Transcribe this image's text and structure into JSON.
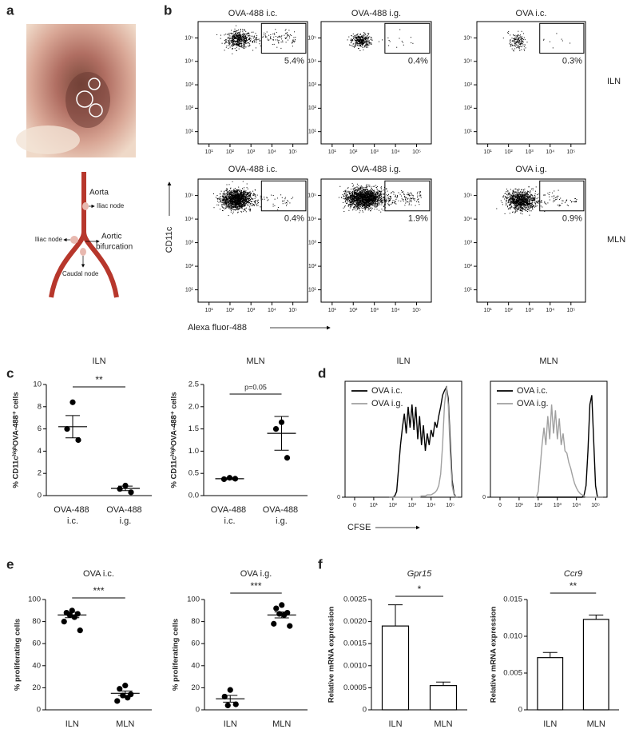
{
  "panel_labels": [
    "a",
    "b",
    "c",
    "d",
    "e",
    "f"
  ],
  "diagram": {
    "aorta": "Aorta",
    "iliac_node_right": "Iliac node",
    "iliac_node_left": "Iliac node",
    "aortic_bifurcation": [
      "Aortic",
      "bifurcation"
    ],
    "caudal_node": "Caudal node"
  },
  "flow": {
    "row_labels": [
      "ILN",
      "MLN"
    ],
    "y_axis_label": "CD11c",
    "x_axis_label": "Alexa fluor-488"
  },
  "chart_data": [
    {
      "type": "flow",
      "title": "OVA-488 i.c.",
      "values": [
        5.4
      ],
      "value_labels": [
        "5.4%"
      ],
      "log": true,
      "xlim": [
        3,
        500000
      ],
      "ylim": [
        3,
        500000
      ],
      "xticks": [
        {
          "value": 10,
          "label": "10¹"
        },
        {
          "value": 100,
          "label": "10²"
        },
        {
          "value": 1000,
          "label": "10³"
        },
        {
          "value": 10000,
          "label": "10⁴"
        },
        {
          "value": 100000,
          "label": "10⁵"
        }
      ],
      "yticks": [
        {
          "value": 10,
          "label": "10¹"
        },
        {
          "value": 100,
          "label": "10²"
        },
        {
          "value": 1000,
          "label": "10³"
        },
        {
          "value": 10000,
          "label": "10⁴"
        },
        {
          "value": 100000,
          "label": "10⁵"
        }
      ]
    },
    {
      "type": "flow",
      "title": "OVA-488 i.g.",
      "values": [
        0.4
      ],
      "value_labels": [
        "0.4%"
      ],
      "log": true,
      "xlim": [
        3,
        500000
      ],
      "ylim": [
        3,
        500000
      ],
      "xticks": [
        {
          "value": 10,
          "label": "10¹"
        },
        {
          "value": 100,
          "label": "10²"
        },
        {
          "value": 1000,
          "label": "10³"
        },
        {
          "value": 10000,
          "label": "10⁴"
        },
        {
          "value": 100000,
          "label": "10⁵"
        }
      ],
      "yticks": [
        {
          "value": 10,
          "label": "10¹"
        },
        {
          "value": 100,
          "label": "10²"
        },
        {
          "value": 1000,
          "label": "10³"
        },
        {
          "value": 10000,
          "label": "10⁴"
        },
        {
          "value": 100000,
          "label": "10⁵"
        }
      ]
    },
    {
      "type": "flow",
      "title": "OVA i.c.",
      "values": [
        0.3
      ],
      "value_labels": [
        "0.3%"
      ],
      "log": true,
      "xlim": [
        3,
        500000
      ],
      "ylim": [
        3,
        500000
      ],
      "xticks": [
        {
          "value": 10,
          "label": "10¹"
        },
        {
          "value": 100,
          "label": "10²"
        },
        {
          "value": 1000,
          "label": "10³"
        },
        {
          "value": 10000,
          "label": "10⁴"
        },
        {
          "value": 100000,
          "label": "10⁵"
        }
      ],
      "yticks": [
        {
          "value": 10,
          "label": "10¹"
        },
        {
          "value": 100,
          "label": "10²"
        },
        {
          "value": 1000,
          "label": "10³"
        },
        {
          "value": 10000,
          "label": "10⁴"
        },
        {
          "value": 100000,
          "label": "10⁵"
        }
      ]
    },
    {
      "type": "flow",
      "title": "OVA-488 i.c.",
      "values": [
        0.4
      ],
      "value_labels": [
        "0.4%"
      ],
      "log": true,
      "xlim": [
        3,
        500000
      ],
      "ylim": [
        3,
        500000
      ],
      "xticks": [
        {
          "value": 10,
          "label": "10¹"
        },
        {
          "value": 100,
          "label": "10²"
        },
        {
          "value": 1000,
          "label": "10³"
        },
        {
          "value": 10000,
          "label": "10⁴"
        },
        {
          "value": 100000,
          "label": "10⁵"
        }
      ],
      "yticks": [
        {
          "value": 10,
          "label": "10¹"
        },
        {
          "value": 100,
          "label": "10²"
        },
        {
          "value": 1000,
          "label": "10³"
        },
        {
          "value": 10000,
          "label": "10⁴"
        },
        {
          "value": 100000,
          "label": "10⁵"
        }
      ]
    },
    {
      "type": "flow",
      "title": "OVA-488 i.g.",
      "values": [
        1.9
      ],
      "value_labels": [
        "1.9%"
      ],
      "log": true,
      "xlim": [
        3,
        500000
      ],
      "ylim": [
        3,
        500000
      ],
      "xticks": [
        {
          "value": 10,
          "label": "10¹"
        },
        {
          "value": 100,
          "label": "10²"
        },
        {
          "value": 1000,
          "label": "10³"
        },
        {
          "value": 10000,
          "label": "10⁴"
        },
        {
          "value": 100000,
          "label": "10⁵"
        }
      ],
      "yticks": [
        {
          "value": 10,
          "label": "10¹"
        },
        {
          "value": 100,
          "label": "10²"
        },
        {
          "value": 1000,
          "label": "10³"
        },
        {
          "value": 10000,
          "label": "10⁴"
        },
        {
          "value": 100000,
          "label": "10⁵"
        }
      ]
    },
    {
      "type": "flow",
      "title": "OVA i.g.",
      "values": [
        0.9
      ],
      "value_labels": [
        "0.9%"
      ],
      "log": true,
      "xlim": [
        3,
        500000
      ],
      "ylim": [
        3,
        500000
      ],
      "xticks": [
        {
          "value": 10,
          "label": "10¹"
        },
        {
          "value": 100,
          "label": "10²"
        },
        {
          "value": 1000,
          "label": "10³"
        },
        {
          "value": 10000,
          "label": "10⁴"
        },
        {
          "value": 100000,
          "label": "10⁵"
        }
      ],
      "yticks": [
        {
          "value": 10,
          "label": "10¹"
        },
        {
          "value": 100,
          "label": "10²"
        },
        {
          "value": 1000,
          "label": "10³"
        },
        {
          "value": 10000,
          "label": "10⁴"
        },
        {
          "value": 100000,
          "label": "10⁵"
        }
      ]
    },
    {
      "type": "dotplot",
      "title": "ILN",
      "ylabel": "% CD11cʰⁱᵍʰOVA-488⁺ cells",
      "categories": [
        "OVA-488 i.c.",
        "OVA-488 i.g."
      ],
      "groups": [
        {
          "points": [
            8.4,
            6.0,
            5.0
          ],
          "mean": 6.2,
          "sem": 1.0
        },
        {
          "points": [
            0.9,
            0.6,
            0.3
          ],
          "mean": 0.65,
          "sem": 0.2
        }
      ],
      "annotation": "**",
      "ylim": [
        0,
        10
      ],
      "yticks": [
        0,
        2,
        4,
        6,
        8,
        10
      ]
    },
    {
      "type": "dotplot",
      "title": "MLN",
      "ylabel": "% CD11cʰⁱᵍʰOVA-488⁺ cells",
      "categories": [
        "OVA-488 i.c.",
        "OVA-488 i.g."
      ],
      "groups": [
        {
          "points": [
            0.4,
            0.37,
            0.38
          ],
          "mean": 0.38,
          "sem": 0.02
        },
        {
          "points": [
            1.65,
            1.5,
            0.85
          ],
          "mean": 1.4,
          "sem": 0.38
        }
      ],
      "annotation": "p=0.05",
      "ylim": [
        0,
        2.5
      ],
      "yticks": [
        {
          "value": 0,
          "label": "0.0"
        },
        {
          "value": 0.5,
          "label": "0.5"
        },
        {
          "value": 1,
          "label": "1.0"
        },
        {
          "value": 1.5,
          "label": "1.5"
        },
        {
          "value": 2,
          "label": "2.0"
        },
        {
          "value": 2.5,
          "label": "2.5"
        }
      ]
    },
    {
      "type": "hist",
      "title": "ILN",
      "xlabel": "CFSE",
      "xlim": [
        -0.5,
        5.6
      ],
      "ylim": [
        0,
        100
      ],
      "xticks": [
        0,
        {
          "value": 1,
          "label": "10¹"
        },
        {
          "value": 2,
          "label": "10²"
        },
        {
          "value": 3,
          "label": "10³"
        },
        {
          "value": 4,
          "label": "10⁴"
        },
        {
          "value": 5,
          "label": "10⁵"
        }
      ],
      "yticks": [
        0
      ],
      "x": [
        1.8,
        1.9,
        2.0,
        2.1,
        2.2,
        2.3,
        2.4,
        2.5,
        2.6,
        2.7,
        2.8,
        2.9,
        3.0,
        3.1,
        3.2,
        3.3,
        3.4,
        3.5,
        3.6,
        3.7,
        3.8,
        3.9,
        4.0,
        4.1,
        4.2,
        4.3,
        4.4,
        4.5,
        4.6,
        4.7,
        4.8,
        4.9,
        5.0,
        5.1,
        5.2,
        5.3,
        5.4
      ],
      "series": [
        {
          "name": "OVA i.c.",
          "color": "#000000",
          "values": [
            0,
            0,
            0,
            1,
            5,
            25,
            45,
            60,
            72,
            55,
            78,
            60,
            80,
            58,
            78,
            50,
            70,
            45,
            62,
            40,
            55,
            45,
            58,
            52,
            65,
            60,
            70,
            78,
            88,
            92,
            95,
            85,
            50,
            15,
            3,
            0,
            0
          ]
        },
        {
          "name": "OVA i.g.",
          "color": "#a0a0a0",
          "values": [
            0,
            0,
            0,
            0,
            0,
            0,
            0,
            0,
            0,
            0,
            0,
            0,
            0,
            0,
            0,
            0,
            0,
            1,
            1,
            1,
            2,
            2,
            2,
            3,
            4,
            6,
            10,
            20,
            45,
            80,
            95,
            80,
            40,
            10,
            2,
            0,
            0
          ]
        }
      ]
    },
    {
      "type": "hist",
      "title": "MLN",
      "xlim": [
        -0.5,
        5.6
      ],
      "ylim": [
        0,
        100
      ],
      "xticks": [
        0,
        {
          "value": 1,
          "label": "10¹"
        },
        {
          "value": 2,
          "label": "10²"
        },
        {
          "value": 3,
          "label": "10³"
        },
        {
          "value": 4,
          "label": "10⁴"
        },
        {
          "value": 5,
          "label": "10⁵"
        }
      ],
      "yticks": [
        0
      ],
      "x": [
        1.8,
        1.9,
        2.0,
        2.1,
        2.2,
        2.3,
        2.4,
        2.5,
        2.6,
        2.7,
        2.8,
        2.9,
        3.0,
        3.1,
        3.2,
        3.3,
        3.4,
        3.5,
        3.6,
        3.7,
        3.8,
        3.9,
        4.0,
        4.1,
        4.2,
        4.3,
        4.4,
        4.5,
        4.6,
        4.7,
        4.8,
        4.9,
        5.0,
        5.1,
        5.2,
        5.3,
        5.4
      ],
      "series": [
        {
          "name": "OVA i.c.",
          "color": "#000000",
          "values": [
            0,
            0,
            0,
            0,
            0,
            0,
            0,
            0,
            0,
            0,
            0,
            0,
            0,
            0,
            0,
            0,
            0,
            0,
            0,
            0,
            0,
            0,
            0,
            0,
            0,
            0,
            2,
            10,
            40,
            80,
            88,
            50,
            10,
            0,
            0,
            0,
            0
          ]
        },
        {
          "name": "OVA i.g.",
          "color": "#a0a0a0",
          "values": [
            0,
            0,
            5,
            25,
            45,
            60,
            45,
            70,
            50,
            80,
            55,
            75,
            50,
            68,
            45,
            55,
            40,
            38,
            30,
            25,
            18,
            12,
            8,
            5,
            3,
            2,
            1,
            0,
            0,
            0,
            0,
            0,
            0,
            0,
            0,
            0,
            0
          ]
        }
      ]
    },
    {
      "type": "dotplot",
      "title": "OVA i.c.",
      "ylabel": "% proliferating cells",
      "categories": [
        "ILN",
        "MLN"
      ],
      "groups": [
        {
          "points": [
            90,
            88,
            87,
            86,
            84,
            80,
            72
          ],
          "mean": 86,
          "sem": 2.5
        },
        {
          "points": [
            22,
            19,
            14,
            13,
            11,
            8
          ],
          "mean": 15,
          "sem": 2
        }
      ],
      "annotation": "***",
      "ylim": [
        0,
        100
      ],
      "yticks": [
        0,
        20,
        40,
        60,
        80,
        100
      ]
    },
    {
      "type": "dotplot",
      "title": "OVA i.g.",
      "ylabel": "% proliferating cells",
      "categories": [
        "ILN",
        "MLN"
      ],
      "groups": [
        {
          "points": [
            18,
            12,
            5,
            4
          ],
          "mean": 10,
          "sem": 3
        },
        {
          "points": [
            95,
            92,
            88,
            87,
            86,
            78,
            76
          ],
          "mean": 86,
          "sem": 2.7
        }
      ],
      "annotation": "***",
      "ylim": [
        0,
        100
      ],
      "yticks": [
        0,
        20,
        40,
        60,
        80,
        100
      ]
    },
    {
      "type": "bar",
      "title": "Gpr15",
      "title_italic": true,
      "ylabel": "Relative mRNA expression",
      "categories": [
        "ILN",
        "MLN"
      ],
      "values": [
        0.0019,
        0.00055
      ],
      "errors": [
        0.00048,
        8e-05
      ],
      "annotation": "*",
      "ylim": [
        0,
        0.0025
      ],
      "yticks": [
        0,
        0.0005,
        {
          "value": 0.001,
          "label": "0.0010"
        },
        0.0015,
        {
          "value": 0.002,
          "label": "0.0020"
        },
        0.0025
      ]
    },
    {
      "type": "bar",
      "title": "Ccr9",
      "title_italic": true,
      "ylabel": "Relative mRNA expression",
      "categories": [
        "ILN",
        "MLN"
      ],
      "values": [
        0.0071,
        0.0123
      ],
      "errors": [
        0.0007,
        0.0006
      ],
      "annotation": "**",
      "ylim": [
        0,
        0.015
      ],
      "yticks": [
        0,
        0.005,
        {
          "value": 0.01,
          "label": "0.010"
        },
        0.015
      ]
    }
  ]
}
